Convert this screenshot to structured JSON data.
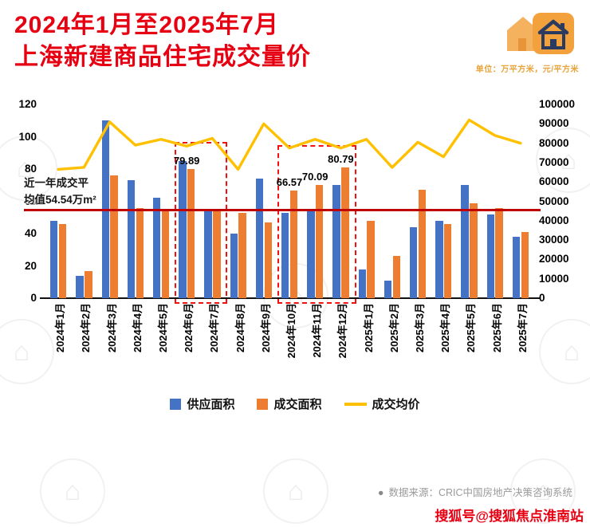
{
  "header": {
    "title_line1": "2024年1月至2025年7月",
    "title_line2": "上海新建商品住宅成交量价",
    "unit_note": "单位：万平方米，元/平方米"
  },
  "chart_data": {
    "type": "combo",
    "title": "2024年1月至2025年7月上海新建商品住宅成交量价",
    "legend_position": "bottom",
    "grid": false,
    "categories": [
      "2024年1月",
      "2024年2月",
      "2024年3月",
      "2024年4月",
      "2024年5月",
      "2024年6月",
      "2024年7月",
      "2024年8月",
      "2024年9月",
      "2024年10月",
      "2024年11月",
      "2024年12月",
      "2025年1月",
      "2025年2月",
      "2025年3月",
      "2025年4月",
      "2025年5月",
      "2025年6月",
      "2025年7月"
    ],
    "series": [
      {
        "name": "供应面积",
        "type": "bar",
        "axis": "left",
        "color": "#4472C4",
        "values": [
          48,
          14,
          110,
          73,
          62,
          85,
          54,
          40,
          74,
          53,
          54,
          70,
          18,
          11,
          44,
          48,
          70,
          52,
          38
        ]
      },
      {
        "name": "成交面积",
        "type": "bar",
        "axis": "left",
        "color": "#ED7D31",
        "values": [
          46,
          17,
          76,
          56,
          55,
          79.89,
          54,
          53,
          47,
          66.57,
          70.09,
          80.79,
          48,
          26,
          67,
          46,
          59,
          56,
          41
        ]
      },
      {
        "name": "成交均价",
        "type": "line",
        "axis": "right",
        "color": "#FFC000",
        "values": [
          66500,
          67500,
          91000,
          79000,
          82000,
          78500,
          82500,
          66500,
          90000,
          77500,
          82000,
          77500,
          82000,
          67500,
          80500,
          73000,
          92000,
          84000,
          80000
        ]
      }
    ],
    "left_axis": {
      "min": 0,
      "max": 120,
      "step": 20,
      "ticks": [
        120,
        100,
        80,
        60,
        40,
        20,
        0
      ]
    },
    "right_axis": {
      "min": 0,
      "max": 100000,
      "step": 10000,
      "ticks": [
        100000,
        90000,
        80000,
        70000,
        60000,
        50000,
        40000,
        30000,
        20000,
        10000,
        0
      ]
    },
    "value_labels": [
      {
        "category_index": 5,
        "text": "79.89"
      },
      {
        "category_index": 9,
        "text": "66.57"
      },
      {
        "category_index": 10,
        "text": "70.09"
      },
      {
        "category_index": 11,
        "text": "80.79"
      }
    ],
    "average_line": {
      "value": 54.54,
      "color": "#C00000",
      "label_line1": "近一年成交平",
      "label_line2": "均值54.54万m²"
    },
    "highlight_boxes": [
      {
        "from_index": 5,
        "to_index": 6,
        "top_value_left_axis": 97
      },
      {
        "from_index": 9,
        "to_index": 11,
        "top_value_left_axis": 95
      }
    ]
  },
  "legend": {
    "items": [
      {
        "label": "供应面积",
        "color": "#4472C4",
        "type": "square"
      },
      {
        "label": "成交面积",
        "color": "#ED7D31",
        "type": "square"
      },
      {
        "label": "成交均价",
        "color": "#FFC000",
        "type": "line"
      }
    ]
  },
  "footer": {
    "bullet": "●",
    "source": "数据来源：CRIC中国房地产决策咨询系统"
  },
  "watermark": {
    "text": "搜狐号@搜狐焦点淮南站"
  },
  "decor": {
    "stamp_glyph": "⌂"
  }
}
